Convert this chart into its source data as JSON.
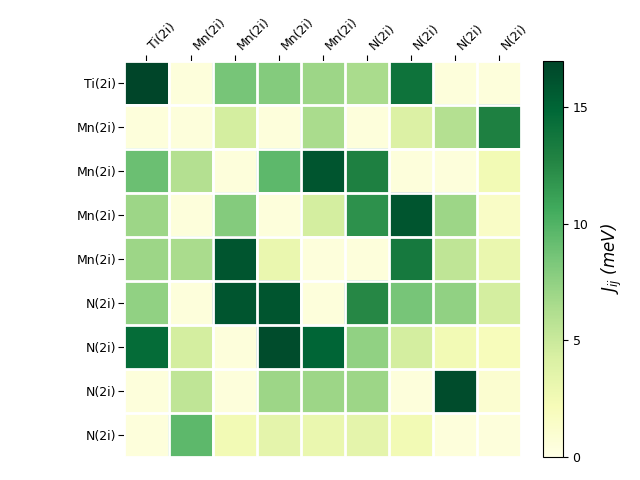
{
  "labels": [
    "Ti(2i)",
    "Mn(2i)",
    "Mn(2i)",
    "Mn(2i)",
    "Mn(2i)",
    "N(2i)",
    "N(2i)",
    "N(2i)",
    "N(2i)"
  ],
  "matrix": [
    [
      17.0,
      0.5,
      8.5,
      8.0,
      7.0,
      6.5,
      14.0,
      0.5,
      0.5
    ],
    [
      0.5,
      0.5,
      4.5,
      0.5,
      6.5,
      0.5,
      4.0,
      6.0,
      13.0
    ],
    [
      9.0,
      6.0,
      0.5,
      9.5,
      16.0,
      13.0,
      0.5,
      0.5,
      2.5
    ],
    [
      7.0,
      0.5,
      8.0,
      0.5,
      4.5,
      12.0,
      16.0,
      7.0,
      1.5
    ],
    [
      7.0,
      6.5,
      16.0,
      3.0,
      0.5,
      0.5,
      13.5,
      5.5,
      3.0
    ],
    [
      7.5,
      0.5,
      16.0,
      16.0,
      0.5,
      12.5,
      8.5,
      7.5,
      4.5
    ],
    [
      14.5,
      4.5,
      0.5,
      16.5,
      15.0,
      7.5,
      4.5,
      2.5,
      2.0
    ],
    [
      0.5,
      5.5,
      0.5,
      7.0,
      7.0,
      7.0,
      0.5,
      16.5,
      1.0
    ],
    [
      0.5,
      9.5,
      2.5,
      3.5,
      3.0,
      3.5,
      2.5,
      0.5,
      0.5
    ]
  ],
  "vmin": 0,
  "vmax": 17,
  "cmap": "YlGn",
  "colorbar_label": "$J_{ij}$ (meV)",
  "colorbar_ticks": [
    0,
    5,
    10,
    15
  ],
  "figsize": [
    6.4,
    4.8
  ],
  "dpi": 100
}
